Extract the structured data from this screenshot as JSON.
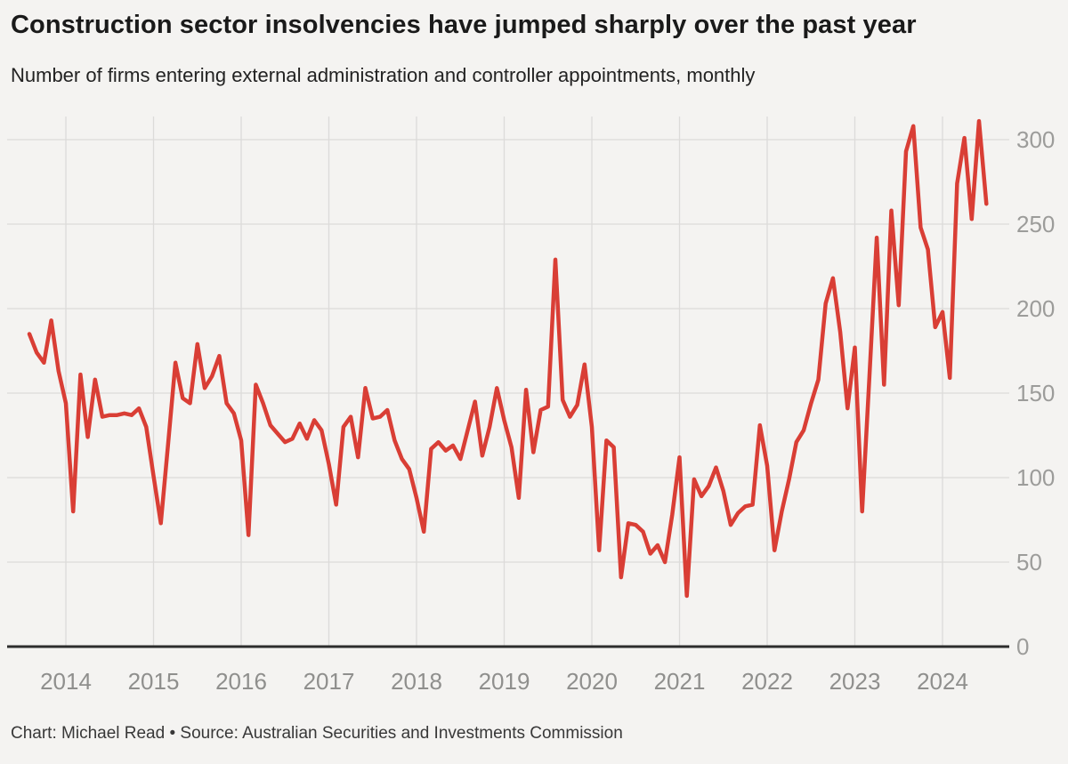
{
  "header": {
    "title": "Construction sector insolvencies have jumped sharply over the past year",
    "subtitle": "Number of firms entering external administration and controller appointments, monthly"
  },
  "footer": {
    "credit": "Chart: Michael Read • Source: Australian Securities and Investments Commission"
  },
  "style": {
    "background": "#f4f3f1",
    "line_color": "#d93e35",
    "gridline_color": "#dcdbd9",
    "axis_line_color": "#2d2d2d",
    "y_label_color": "#9c9c9a",
    "x_label_color": "#8f8f8d"
  },
  "chart_data": {
    "type": "line",
    "title": "Construction sector insolvencies have jumped sharply over the past year",
    "subtitle": "Number of firms entering external administration and controller appointments, monthly",
    "xlabel": "",
    "ylabel": "",
    "frequency": "monthly",
    "legend": "none",
    "grid": true,
    "y_axis_side": "right",
    "ylim": [
      0,
      320
    ],
    "y_ticks": [
      0,
      50,
      100,
      150,
      200,
      250,
      300
    ],
    "x_tick_years": [
      2014,
      2015,
      2016,
      2017,
      2018,
      2019,
      2020,
      2021,
      2022,
      2023,
      2024
    ],
    "series": [
      {
        "name": "Construction firms entering external administration and controller appointments",
        "start": "2013-08",
        "values": [
          185,
          174,
          168,
          193,
          163,
          144,
          80,
          161,
          124,
          158,
          136,
          137,
          137,
          138,
          137,
          141,
          130,
          101,
          73,
          120,
          168,
          147,
          144,
          179,
          153,
          160,
          172,
          144,
          138,
          122,
          66,
          155,
          144,
          131,
          126,
          121,
          123,
          132,
          123,
          134,
          128,
          108,
          84,
          130,
          136,
          112,
          153,
          135,
          136,
          140,
          122,
          111,
          105,
          88,
          68,
          117,
          121,
          116,
          119,
          111,
          128,
          145,
          113,
          130,
          153,
          134,
          118,
          88,
          152,
          115,
          140,
          142,
          229,
          146,
          136,
          143,
          167,
          130,
          57,
          122,
          118,
          41,
          73,
          72,
          68,
          55,
          60,
          50,
          78,
          112,
          30,
          99,
          89,
          95,
          106,
          92,
          72,
          79,
          83,
          84,
          131,
          107,
          57,
          80,
          99,
          121,
          128,
          144,
          158,
          203,
          218,
          186,
          141,
          177,
          80,
          160,
          242,
          155,
          258,
          202,
          293,
          308,
          248,
          235,
          189,
          198,
          159,
          274,
          301,
          253,
          311,
          262
        ]
      }
    ]
  }
}
